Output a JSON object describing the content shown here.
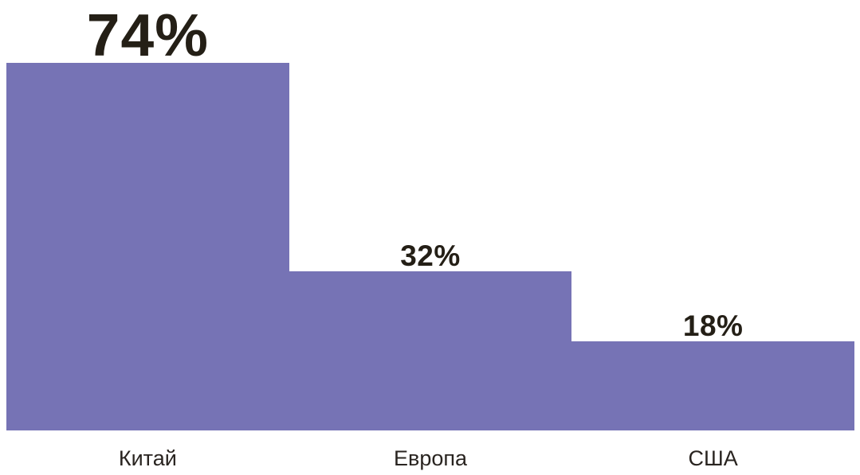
{
  "chart_data": {
    "type": "bar",
    "categories": [
      "Китай",
      "Европа",
      "США"
    ],
    "values": [
      74,
      32,
      18
    ],
    "value_labels": [
      "74%",
      "32%",
      "18%"
    ],
    "title": "",
    "xlabel": "",
    "ylabel": "",
    "ylim": [
      0,
      100
    ],
    "grid": false,
    "legend_position": "none",
    "orientation": "vertical",
    "bars_contiguous": true,
    "bar_color": "#7673b5",
    "value_text_color": "#241f16",
    "category_text_color": "#292420",
    "background_color": "#ffffff"
  }
}
